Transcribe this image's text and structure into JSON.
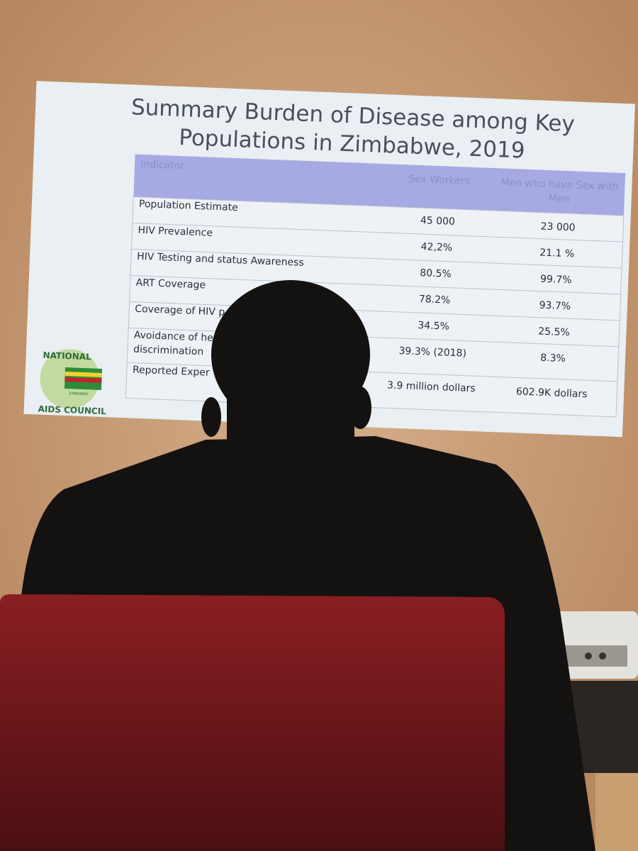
{
  "slide": {
    "title_lines": [
      "Summary Burden of Disease among Key",
      "Populations in Zimbabwe, 2019"
    ],
    "table": {
      "header": [
        "Indicator",
        "Sex Workers",
        "Men who have Sex with",
        "Men"
      ],
      "rows": [
        [
          "Population Estimate",
          "45 000",
          "23 000"
        ],
        [
          "HIV Prevalence",
          "42,2%",
          "21.1 %"
        ],
        [
          "HIV Testing and status Awareness",
          "80.5%",
          "99.7%"
        ],
        [
          "ART Coverage",
          "78.2%",
          "93.7%"
        ],
        [
          "Coverage of HIV p",
          "34.5%",
          "25.5%"
        ],
        [
          "Avoidance of he",
          "39.3% (2018)",
          "8.3%",
          "discrimination"
        ],
        [
          "Reported Exper",
          "3.9 million dollars",
          "602.9K dollars"
        ]
      ]
    },
    "logo": {
      "top": "NATIONAL",
      "bottom": "AIDS COUNCIL",
      "center": "ZIMBABWE"
    }
  }
}
